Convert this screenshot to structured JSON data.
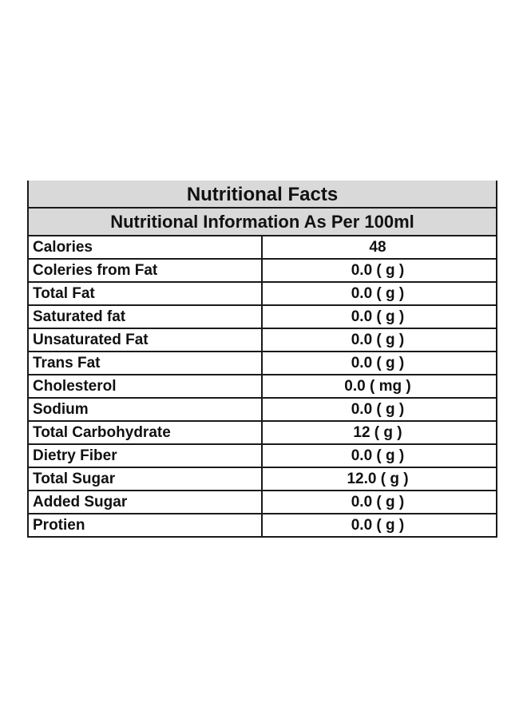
{
  "table": {
    "title": "Nutritional Facts",
    "subtitle": "Nutritional Information As Per 100ml",
    "rows": [
      {
        "name": "Calories",
        "value": "48"
      },
      {
        "name": "Coleries from Fat",
        "value": "0.0 ( g )"
      },
      {
        "name": "Total Fat",
        "value": "0.0 ( g )"
      },
      {
        "name": "Saturated fat",
        "value": "0.0 ( g )"
      },
      {
        "name": "Unsaturated Fat",
        "value": "0.0 ( g )"
      },
      {
        "name": "Trans Fat",
        "value": "0.0 ( g )"
      },
      {
        "name": "Cholesterol",
        "value": "0.0 ( mg )"
      },
      {
        "name": "Sodium",
        "value": "0.0 ( g )"
      },
      {
        "name": "Total Carbohydrate",
        "value": "12 ( g )"
      },
      {
        "name": "Dietry Fiber",
        "value": "0.0 ( g )"
      },
      {
        "name": "Total Sugar",
        "value": "12.0 ( g )"
      },
      {
        "name": "Added Sugar",
        "value": "0.0 ( g )"
      },
      {
        "name": "Protien",
        "value": "0.0 ( g )"
      }
    ]
  },
  "colors": {
    "header_background": "#d9d9d9",
    "border": "#1a1a1a",
    "text": "#111111"
  }
}
